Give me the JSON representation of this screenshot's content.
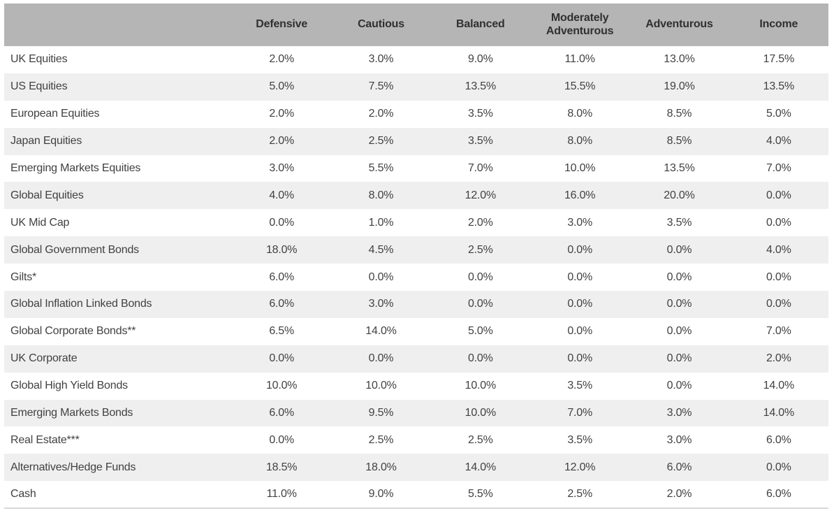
{
  "table": {
    "header": {
      "asset_column_label": "",
      "profiles": [
        "Defensive",
        "Cautious",
        "Balanced",
        "Moderately Adventurous",
        "Adventurous",
        "Income"
      ]
    },
    "rows": [
      {
        "name": "UK Equities",
        "values": [
          "2.0%",
          "3.0%",
          "9.0%",
          "11.0%",
          "13.0%",
          "17.5%"
        ]
      },
      {
        "name": "US Equities",
        "values": [
          "5.0%",
          "7.5%",
          "13.5%",
          "15.5%",
          "19.0%",
          "13.5%"
        ]
      },
      {
        "name": "European Equities",
        "values": [
          "2.0%",
          "2.0%",
          "3.5%",
          "8.0%",
          "8.5%",
          "5.0%"
        ]
      },
      {
        "name": "Japan Equities",
        "values": [
          "2.0%",
          "2.5%",
          "3.5%",
          "8.0%",
          "8.5%",
          "4.0%"
        ]
      },
      {
        "name": "Emerging Markets Equities",
        "values": [
          "3.0%",
          "5.5%",
          "7.0%",
          "10.0%",
          "13.5%",
          "7.0%"
        ]
      },
      {
        "name": "Global Equities",
        "values": [
          "4.0%",
          "8.0%",
          "12.0%",
          "16.0%",
          "20.0%",
          "0.0%"
        ]
      },
      {
        "name": "UK Mid Cap",
        "values": [
          "0.0%",
          "1.0%",
          "2.0%",
          "3.0%",
          "3.5%",
          "0.0%"
        ]
      },
      {
        "name": "Global Government Bonds",
        "values": [
          "18.0%",
          "4.5%",
          "2.5%",
          "0.0%",
          "0.0%",
          "4.0%"
        ]
      },
      {
        "name": "Gilts*",
        "values": [
          "6.0%",
          "0.0%",
          "0.0%",
          "0.0%",
          "0.0%",
          "0.0%"
        ]
      },
      {
        "name": "Global Inflation Linked Bonds",
        "values": [
          "6.0%",
          "3.0%",
          "0.0%",
          "0.0%",
          "0.0%",
          "0.0%"
        ]
      },
      {
        "name": "Global Corporate Bonds**",
        "values": [
          "6.5%",
          "14.0%",
          "5.0%",
          "0.0%",
          "0.0%",
          "7.0%"
        ]
      },
      {
        "name": "UK Corporate",
        "values": [
          "0.0%",
          "0.0%",
          "0.0%",
          "0.0%",
          "0.0%",
          "2.0%"
        ]
      },
      {
        "name": "Global High Yield Bonds",
        "values": [
          "10.0%",
          "10.0%",
          "10.0%",
          "3.5%",
          "0.0%",
          "14.0%"
        ]
      },
      {
        "name": "Emerging Markets Bonds",
        "values": [
          "6.0%",
          "9.5%",
          "10.0%",
          "7.0%",
          "3.0%",
          "14.0%"
        ]
      },
      {
        "name": "Real Estate***",
        "values": [
          "0.0%",
          "2.5%",
          "2.5%",
          "3.5%",
          "3.0%",
          "6.0%"
        ]
      },
      {
        "name": "Alternatives/Hedge Funds",
        "values": [
          "18.5%",
          "18.0%",
          "14.0%",
          "12.0%",
          "6.0%",
          "0.0%"
        ]
      },
      {
        "name": "Cash",
        "values": [
          "11.0%",
          "9.0%",
          "5.5%",
          "2.5%",
          "2.0%",
          "6.0%"
        ]
      }
    ],
    "colors": {
      "header_bg": "#b5b5b5",
      "row_bg": "#ffffff",
      "row_alt_bg": "#efefef",
      "header_text": "#303030",
      "body_text": "#414141",
      "bottom_border": "#d8d8d8"
    }
  },
  "chart_data": {
    "type": "table",
    "title": "",
    "unit": "%",
    "categories": [
      "UK Equities",
      "US Equities",
      "European Equities",
      "Japan Equities",
      "Emerging Markets Equities",
      "Global Equities",
      "UK Mid Cap",
      "Global Government Bonds",
      "Gilts*",
      "Global Inflation Linked Bonds",
      "Global Corporate Bonds**",
      "UK Corporate",
      "Global High Yield Bonds",
      "Emerging Markets Bonds",
      "Real Estate***",
      "Alternatives/Hedge Funds",
      "Cash"
    ],
    "series": [
      {
        "name": "Defensive",
        "values": [
          2.0,
          5.0,
          2.0,
          2.0,
          3.0,
          4.0,
          0.0,
          18.0,
          6.0,
          6.0,
          6.5,
          0.0,
          10.0,
          6.0,
          0.0,
          18.5,
          11.0
        ]
      },
      {
        "name": "Cautious",
        "values": [
          3.0,
          7.5,
          2.0,
          2.5,
          5.5,
          8.0,
          1.0,
          4.5,
          0.0,
          3.0,
          14.0,
          0.0,
          10.0,
          9.5,
          2.5,
          18.0,
          9.0
        ]
      },
      {
        "name": "Balanced",
        "values": [
          9.0,
          13.5,
          3.5,
          3.5,
          7.0,
          12.0,
          2.0,
          2.5,
          0.0,
          0.0,
          5.0,
          0.0,
          10.0,
          10.0,
          2.5,
          14.0,
          5.5
        ]
      },
      {
        "name": "Moderately Adventurous",
        "values": [
          11.0,
          15.5,
          8.0,
          8.0,
          10.0,
          16.0,
          3.0,
          0.0,
          0.0,
          0.0,
          0.0,
          0.0,
          3.5,
          7.0,
          3.5,
          12.0,
          2.5
        ]
      },
      {
        "name": "Adventurous",
        "values": [
          13.0,
          19.0,
          8.5,
          8.5,
          13.5,
          20.0,
          3.5,
          0.0,
          0.0,
          0.0,
          0.0,
          0.0,
          0.0,
          3.0,
          3.0,
          6.0,
          2.0
        ]
      },
      {
        "name": "Income",
        "values": [
          17.5,
          13.5,
          5.0,
          4.0,
          7.0,
          0.0,
          0.0,
          4.0,
          0.0,
          0.0,
          7.0,
          2.0,
          14.0,
          14.0,
          6.0,
          0.0,
          6.0
        ]
      }
    ]
  }
}
